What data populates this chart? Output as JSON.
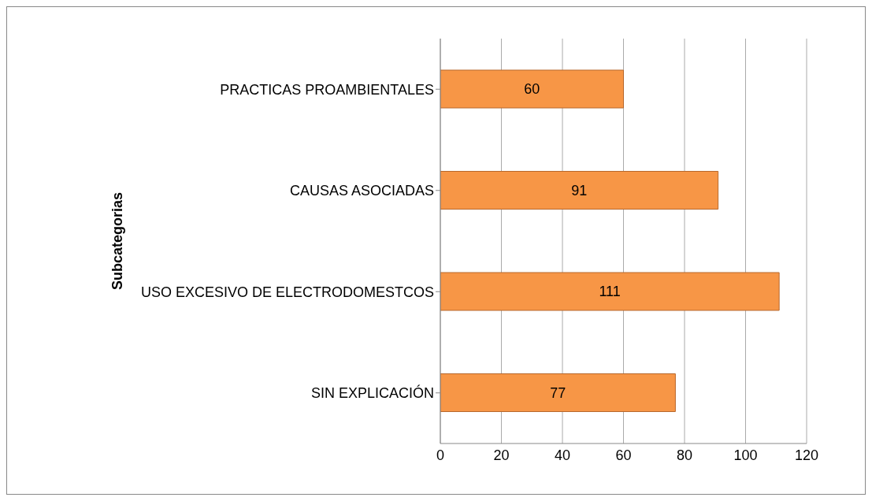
{
  "chart_data": {
    "type": "bar",
    "orientation": "horizontal",
    "ylabel": "Subcategorias",
    "categories": [
      "PRACTICAS PROAMBIENTALES",
      "CAUSAS ASOCIADAS",
      "USO EXCESIVO DE ELECTRODOMESTCOS",
      "SIN EXPLICACIÓN"
    ],
    "values": [
      60,
      91,
      111,
      77
    ],
    "color": "#f79646",
    "xlim": [
      0,
      120
    ],
    "xticks": [
      0,
      20,
      40,
      60,
      80,
      100,
      120
    ],
    "grid": "x",
    "data_labels": true
  }
}
